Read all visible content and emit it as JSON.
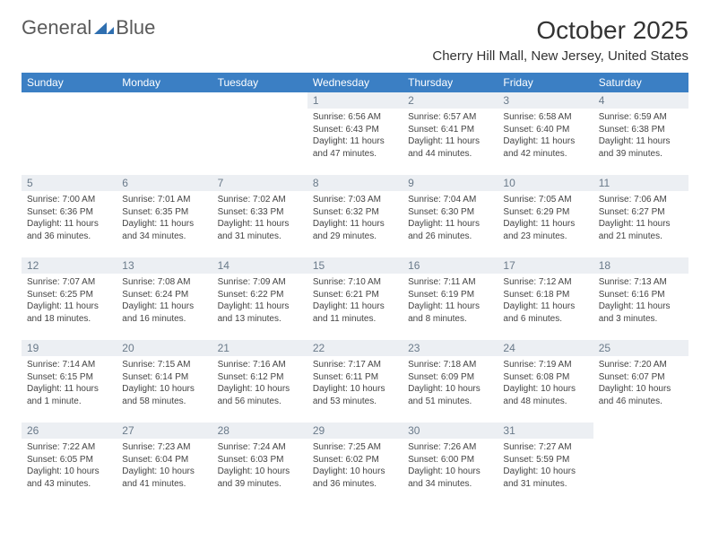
{
  "logo": {
    "text_general": "General",
    "text_blue": "Blue"
  },
  "header": {
    "month_title": "October 2025",
    "location": "Cherry Hill Mall, New Jersey, United States"
  },
  "colors": {
    "header_bg": "#3b7fc4",
    "header_fg": "#ffffff",
    "daynum_bg": "#eceff3",
    "daynum_fg": "#6a7a8a",
    "body_text": "#444444",
    "logo_icon": "#2f6fb0"
  },
  "weekdays": [
    "Sunday",
    "Monday",
    "Tuesday",
    "Wednesday",
    "Thursday",
    "Friday",
    "Saturday"
  ],
  "label_sunrise": "Sunrise: ",
  "label_sunset": "Sunset: ",
  "label_daylight": "Daylight: ",
  "grid": [
    [
      {
        "empty": true
      },
      {
        "empty": true
      },
      {
        "empty": true
      },
      {
        "day": "1",
        "sunrise": "6:56 AM",
        "sunset": "6:43 PM",
        "daylight": "11 hours and 47 minutes."
      },
      {
        "day": "2",
        "sunrise": "6:57 AM",
        "sunset": "6:41 PM",
        "daylight": "11 hours and 44 minutes."
      },
      {
        "day": "3",
        "sunrise": "6:58 AM",
        "sunset": "6:40 PM",
        "daylight": "11 hours and 42 minutes."
      },
      {
        "day": "4",
        "sunrise": "6:59 AM",
        "sunset": "6:38 PM",
        "daylight": "11 hours and 39 minutes."
      }
    ],
    [
      {
        "day": "5",
        "sunrise": "7:00 AM",
        "sunset": "6:36 PM",
        "daylight": "11 hours and 36 minutes."
      },
      {
        "day": "6",
        "sunrise": "7:01 AM",
        "sunset": "6:35 PM",
        "daylight": "11 hours and 34 minutes."
      },
      {
        "day": "7",
        "sunrise": "7:02 AM",
        "sunset": "6:33 PM",
        "daylight": "11 hours and 31 minutes."
      },
      {
        "day": "8",
        "sunrise": "7:03 AM",
        "sunset": "6:32 PM",
        "daylight": "11 hours and 29 minutes."
      },
      {
        "day": "9",
        "sunrise": "7:04 AM",
        "sunset": "6:30 PM",
        "daylight": "11 hours and 26 minutes."
      },
      {
        "day": "10",
        "sunrise": "7:05 AM",
        "sunset": "6:29 PM",
        "daylight": "11 hours and 23 minutes."
      },
      {
        "day": "11",
        "sunrise": "7:06 AM",
        "sunset": "6:27 PM",
        "daylight": "11 hours and 21 minutes."
      }
    ],
    [
      {
        "day": "12",
        "sunrise": "7:07 AM",
        "sunset": "6:25 PM",
        "daylight": "11 hours and 18 minutes."
      },
      {
        "day": "13",
        "sunrise": "7:08 AM",
        "sunset": "6:24 PM",
        "daylight": "11 hours and 16 minutes."
      },
      {
        "day": "14",
        "sunrise": "7:09 AM",
        "sunset": "6:22 PM",
        "daylight": "11 hours and 13 minutes."
      },
      {
        "day": "15",
        "sunrise": "7:10 AM",
        "sunset": "6:21 PM",
        "daylight": "11 hours and 11 minutes."
      },
      {
        "day": "16",
        "sunrise": "7:11 AM",
        "sunset": "6:19 PM",
        "daylight": "11 hours and 8 minutes."
      },
      {
        "day": "17",
        "sunrise": "7:12 AM",
        "sunset": "6:18 PM",
        "daylight": "11 hours and 6 minutes."
      },
      {
        "day": "18",
        "sunrise": "7:13 AM",
        "sunset": "6:16 PM",
        "daylight": "11 hours and 3 minutes."
      }
    ],
    [
      {
        "day": "19",
        "sunrise": "7:14 AM",
        "sunset": "6:15 PM",
        "daylight": "11 hours and 1 minute."
      },
      {
        "day": "20",
        "sunrise": "7:15 AM",
        "sunset": "6:14 PM",
        "daylight": "10 hours and 58 minutes."
      },
      {
        "day": "21",
        "sunrise": "7:16 AM",
        "sunset": "6:12 PM",
        "daylight": "10 hours and 56 minutes."
      },
      {
        "day": "22",
        "sunrise": "7:17 AM",
        "sunset": "6:11 PM",
        "daylight": "10 hours and 53 minutes."
      },
      {
        "day": "23",
        "sunrise": "7:18 AM",
        "sunset": "6:09 PM",
        "daylight": "10 hours and 51 minutes."
      },
      {
        "day": "24",
        "sunrise": "7:19 AM",
        "sunset": "6:08 PM",
        "daylight": "10 hours and 48 minutes."
      },
      {
        "day": "25",
        "sunrise": "7:20 AM",
        "sunset": "6:07 PM",
        "daylight": "10 hours and 46 minutes."
      }
    ],
    [
      {
        "day": "26",
        "sunrise": "7:22 AM",
        "sunset": "6:05 PM",
        "daylight": "10 hours and 43 minutes."
      },
      {
        "day": "27",
        "sunrise": "7:23 AM",
        "sunset": "6:04 PM",
        "daylight": "10 hours and 41 minutes."
      },
      {
        "day": "28",
        "sunrise": "7:24 AM",
        "sunset": "6:03 PM",
        "daylight": "10 hours and 39 minutes."
      },
      {
        "day": "29",
        "sunrise": "7:25 AM",
        "sunset": "6:02 PM",
        "daylight": "10 hours and 36 minutes."
      },
      {
        "day": "30",
        "sunrise": "7:26 AM",
        "sunset": "6:00 PM",
        "daylight": "10 hours and 34 minutes."
      },
      {
        "day": "31",
        "sunrise": "7:27 AM",
        "sunset": "5:59 PM",
        "daylight": "10 hours and 31 minutes."
      },
      {
        "empty": true
      }
    ]
  ]
}
